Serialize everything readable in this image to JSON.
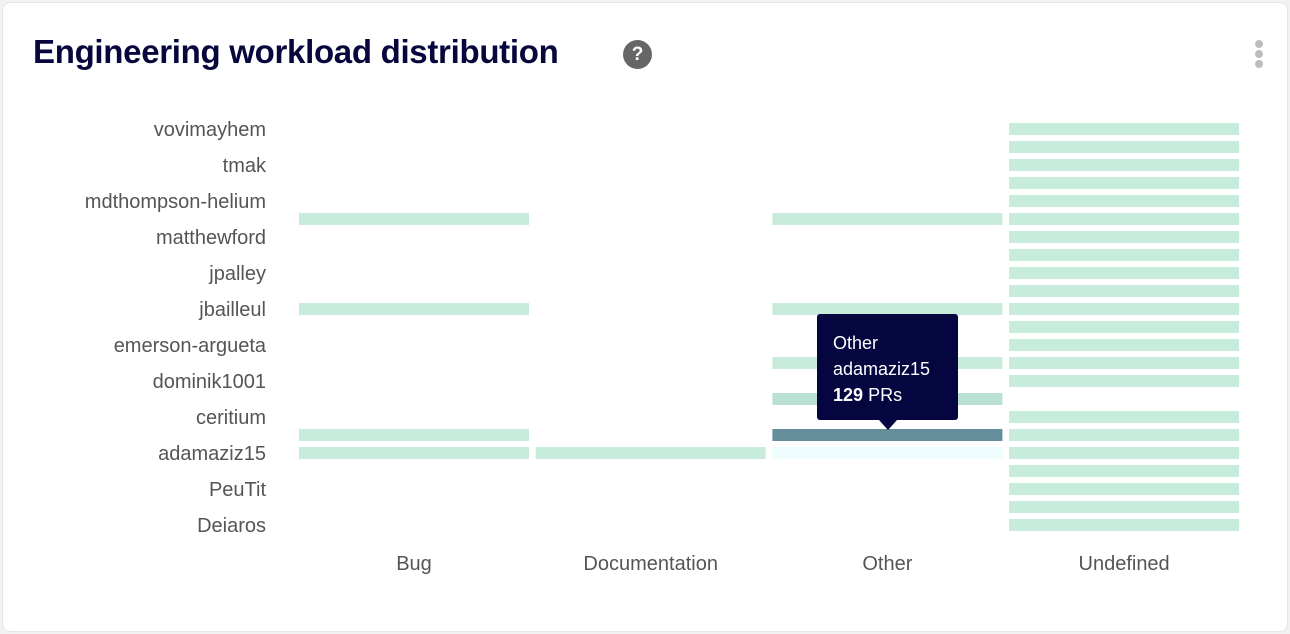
{
  "header": {
    "title": "Engineering workload distribution",
    "help_icon": "question-circle-icon",
    "menu_icon": "kebab-menu-icon"
  },
  "chart_data": {
    "type": "heatmap",
    "title": "Engineering workload distribution",
    "columns": [
      "Bug",
      "Documentation",
      "Other",
      "Undefined"
    ],
    "row_labels": [
      "vovimayhem",
      "",
      "tmak",
      "",
      "mdthompson-helium",
      "",
      "matthewford",
      "",
      "jpalley",
      "",
      "jbailleul",
      "",
      "emerson-argueta",
      "",
      "dominik1001",
      "",
      "ceritium",
      "",
      "adamaziz15",
      "",
      "PeuTit",
      "",
      "Deiaros"
    ],
    "colors": {
      "light": "#c8ecdb",
      "medium": "#b8e0d4",
      "hover": "#648e9a",
      "faint": "#f0fdff"
    },
    "cells": [
      {
        "row": 5,
        "col": "Bug",
        "level": "light"
      },
      {
        "row": 10,
        "col": "Bug",
        "level": "light"
      },
      {
        "row": 17,
        "col": "Bug",
        "level": "light"
      },
      {
        "row": 18,
        "col": "Bug",
        "level": "light"
      },
      {
        "row": 18,
        "col": "Documentation",
        "level": "light"
      },
      {
        "row": 5,
        "col": "Other",
        "level": "light"
      },
      {
        "row": 10,
        "col": "Other",
        "level": "light"
      },
      {
        "row": 13,
        "col": "Other",
        "level": "light"
      },
      {
        "row": 15,
        "col": "Other",
        "level": "medium"
      },
      {
        "row": 17,
        "col": "Other",
        "level": "hover"
      },
      {
        "row": 18,
        "col": "Other",
        "level": "faint"
      },
      {
        "row": 0,
        "col": "Undefined",
        "level": "light"
      },
      {
        "row": 1,
        "col": "Undefined",
        "level": "light"
      },
      {
        "row": 2,
        "col": "Undefined",
        "level": "light"
      },
      {
        "row": 3,
        "col": "Undefined",
        "level": "light"
      },
      {
        "row": 4,
        "col": "Undefined",
        "level": "light"
      },
      {
        "row": 5,
        "col": "Undefined",
        "level": "light"
      },
      {
        "row": 6,
        "col": "Undefined",
        "level": "light"
      },
      {
        "row": 7,
        "col": "Undefined",
        "level": "light"
      },
      {
        "row": 8,
        "col": "Undefined",
        "level": "light"
      },
      {
        "row": 9,
        "col": "Undefined",
        "level": "light"
      },
      {
        "row": 10,
        "col": "Undefined",
        "level": "light"
      },
      {
        "row": 11,
        "col": "Undefined",
        "level": "light"
      },
      {
        "row": 12,
        "col": "Undefined",
        "level": "light"
      },
      {
        "row": 13,
        "col": "Undefined",
        "level": "light"
      },
      {
        "row": 14,
        "col": "Undefined",
        "level": "light"
      },
      {
        "row": 16,
        "col": "Undefined",
        "level": "light"
      },
      {
        "row": 17,
        "col": "Undefined",
        "level": "light"
      },
      {
        "row": 18,
        "col": "Undefined",
        "level": "light"
      },
      {
        "row": 19,
        "col": "Undefined",
        "level": "light"
      },
      {
        "row": 20,
        "col": "Undefined",
        "level": "light"
      },
      {
        "row": 21,
        "col": "Undefined",
        "level": "light"
      },
      {
        "row": 22,
        "col": "Undefined",
        "level": "light"
      }
    ],
    "tooltip": {
      "category": "Other",
      "user": "adamaziz15",
      "value": "129",
      "unit": "PRs"
    }
  }
}
